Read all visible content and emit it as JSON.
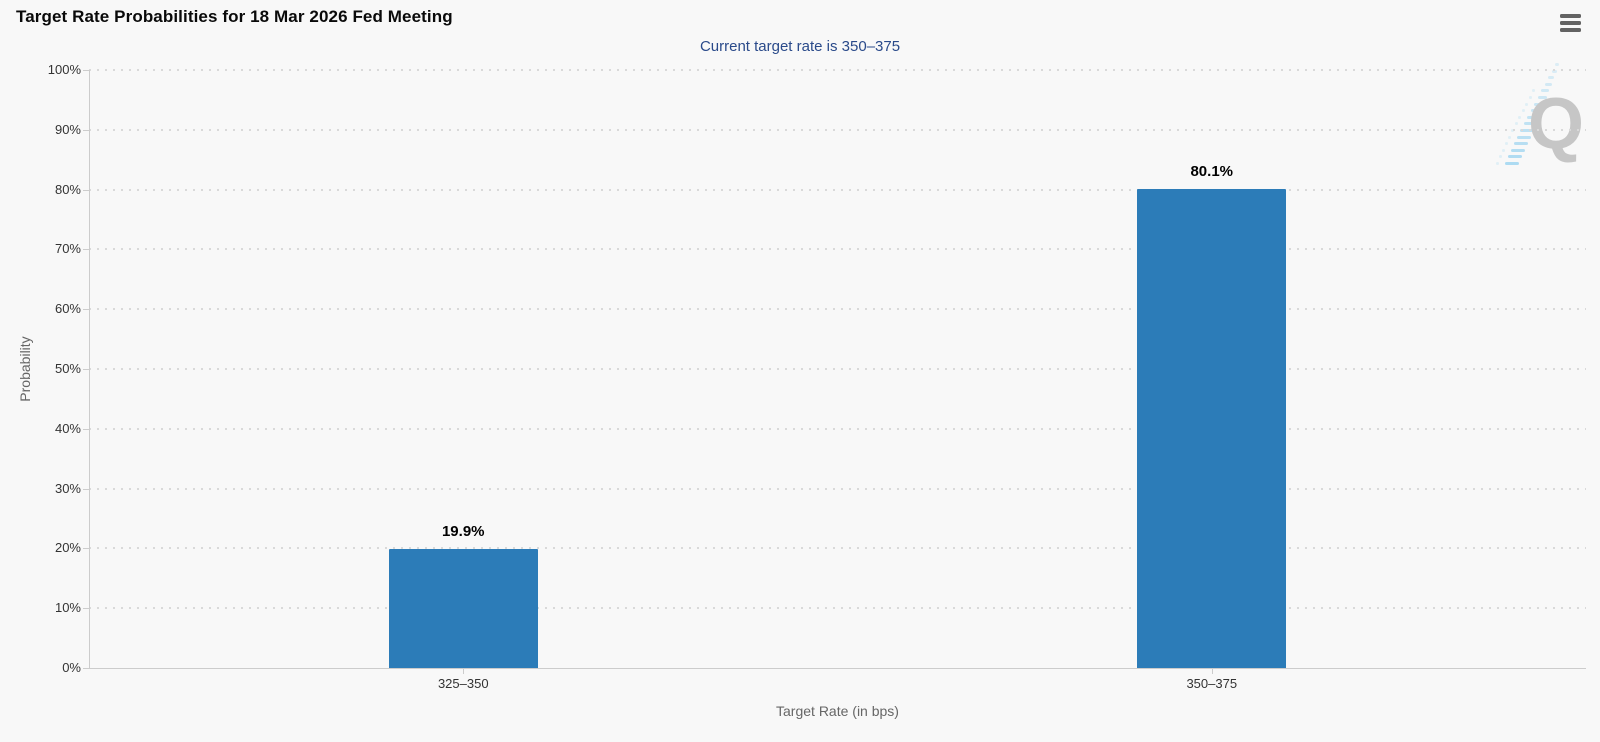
{
  "chart_data": {
    "type": "bar",
    "title": "Target Rate Probabilities for 18 Mar 2026 Fed Meeting",
    "subtitle": "Current target rate is 350–375",
    "categories": [
      "325–350",
      "350–375"
    ],
    "values": [
      19.9,
      80.1
    ],
    "data_labels": [
      "19.9%",
      "80.1%"
    ],
    "xlabel": "Target Rate (in bps)",
    "ylabel": "Probability",
    "ylim": [
      0,
      100
    ],
    "ytick_step": 10,
    "ytick_labels": [
      "0%",
      "10%",
      "20%",
      "30%",
      "40%",
      "50%",
      "60%",
      "70%",
      "80%",
      "90%",
      "100%"
    ],
    "legend": "none",
    "grid": "horizontal-dotted",
    "bar_color": "#2c7cb8"
  },
  "colors": {
    "background": "#f8f8f8",
    "bar": "#2c7cb8",
    "subtitle_text": "#2a4a8a",
    "axis_line": "#cccccc",
    "grid_dot": "#d9d9d9",
    "tick_text": "#333333",
    "axis_title_text": "#666666",
    "menu_icon": "#636363",
    "watermark_gray": "#c6c6c6",
    "watermark_blue": "#a9d9f1"
  },
  "icons": {
    "menu": "hamburger-menu-icon"
  },
  "watermark": {
    "letter": "Q"
  }
}
